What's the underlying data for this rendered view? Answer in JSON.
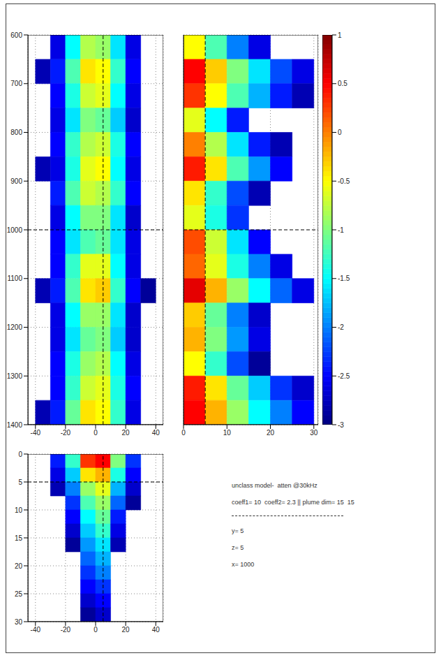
{
  "chart_data": [
    {
      "type": "heatmap",
      "xlim": [
        -45,
        45
      ],
      "ylim": [
        1400,
        600
      ],
      "xticks": [
        -40,
        -20,
        0,
        20,
        40
      ],
      "yticks": [
        600,
        700,
        800,
        900,
        1000,
        1100,
        1200,
        1300,
        1400
      ],
      "grid": true,
      "tick_labels": true,
      "reference_lines": [
        {
          "axis": "y",
          "value": 1000,
          "line_style": "dashed"
        },
        {
          "axis": "x",
          "value": 5,
          "line_style": "dashed"
        }
      ],
      "x": [
        -35,
        -25,
        -15,
        -5,
        5,
        15,
        25,
        35
      ],
      "y": [
        625,
        675,
        725,
        775,
        825,
        875,
        925,
        975,
        1025,
        1075,
        1125,
        1175,
        1225,
        1275,
        1325,
        1375
      ],
      "cells": [
        [
          null,
          -2.6,
          -1.5,
          -0.8,
          -0.9,
          -1.6,
          -2.6,
          null
        ],
        [
          -2.8,
          -2.4,
          -1.2,
          -0.4,
          -0.5,
          -1.3,
          -2.5,
          null
        ],
        [
          null,
          -2.5,
          -1.4,
          -0.7,
          -0.6,
          -1.5,
          -2.6,
          null
        ],
        [
          null,
          -2.6,
          -1.6,
          -1.0,
          -1.1,
          -1.7,
          -2.7,
          null
        ],
        [
          null,
          -2.5,
          -1.3,
          -0.8,
          -0.7,
          -1.4,
          -2.5,
          null
        ],
        [
          -2.8,
          -2.6,
          -1.4,
          -0.6,
          -0.5,
          -1.5,
          -2.6,
          null
        ],
        [
          null,
          -2.4,
          -1.2,
          -0.7,
          -0.8,
          -1.3,
          -2.5,
          null
        ],
        [
          null,
          -2.6,
          -1.5,
          -1.0,
          -1.0,
          -1.6,
          -2.7,
          null
        ],
        [
          null,
          -2.5,
          -1.6,
          -1.2,
          -1.1,
          -1.6,
          -2.6,
          null
        ],
        [
          null,
          -2.5,
          -1.3,
          -0.6,
          -0.6,
          -1.5,
          -2.6,
          null
        ],
        [
          -2.8,
          -2.4,
          -1.2,
          -0.4,
          -0.3,
          -1.3,
          -2.5,
          -2.9
        ],
        [
          null,
          -2.6,
          -1.5,
          -0.9,
          -0.9,
          -1.6,
          -2.7,
          null
        ],
        [
          null,
          -2.6,
          -1.6,
          -1.1,
          -1.0,
          -1.7,
          -2.7,
          null
        ],
        [
          null,
          -2.5,
          -1.4,
          -0.9,
          -0.8,
          -1.5,
          -2.6,
          null
        ],
        [
          null,
          -2.5,
          -1.3,
          -0.7,
          -0.6,
          -1.4,
          -2.5,
          null
        ],
        [
          -2.8,
          -2.4,
          -1.1,
          -0.4,
          -0.5,
          -1.3,
          -2.6,
          null
        ]
      ]
    },
    {
      "type": "heatmap",
      "xlim": [
        0,
        31
      ],
      "ylim": [
        1400,
        600
      ],
      "xticks": [
        0,
        10,
        20,
        30
      ],
      "yticks": [
        600,
        700,
        800,
        900,
        1000,
        1100,
        1200,
        1300,
        1400
      ],
      "grid": true,
      "tick_labels": "x",
      "reference_lines": [
        {
          "axis": "y",
          "value": 1000,
          "line_style": "dashed"
        },
        {
          "axis": "x",
          "value": 5,
          "line_style": "dashed"
        }
      ],
      "x": [
        2.5,
        7.5,
        12.5,
        17.5,
        22.5,
        27.5
      ],
      "y": [
        625,
        675,
        725,
        775,
        825,
        875,
        925,
        975,
        1025,
        1075,
        1125,
        1175,
        1225,
        1275,
        1325,
        1375
      ],
      "cells": [
        [
          -0.5,
          -1.2,
          -2.0,
          -2.6,
          null,
          null
        ],
        [
          0.5,
          -0.3,
          -1.0,
          -1.6,
          -2.2,
          -2.6
        ],
        [
          0.3,
          -0.5,
          -1.2,
          -1.8,
          -2.4,
          -2.8
        ],
        [
          -0.6,
          -1.5,
          -2.4,
          null,
          null,
          null
        ],
        [
          0.0,
          -0.8,
          -1.6,
          -2.4,
          -2.8,
          null
        ],
        [
          0.4,
          -0.4,
          -1.2,
          -1.9,
          -2.5,
          null
        ],
        [
          -0.4,
          -1.3,
          -2.2,
          -2.8,
          null,
          null
        ],
        [
          -0.6,
          -1.4,
          -2.3,
          null,
          null,
          null
        ],
        [
          0.2,
          -0.7,
          -1.6,
          -2.5,
          null,
          null
        ],
        [
          0.1,
          -0.6,
          -1.4,
          -2.0,
          -2.6,
          null
        ],
        [
          0.6,
          -0.2,
          -0.9,
          -1.5,
          -2.1,
          -2.6
        ],
        [
          -0.3,
          -1.1,
          -2.0,
          -2.7,
          null,
          null
        ],
        [
          -0.2,
          -1.0,
          -1.9,
          -2.6,
          null,
          null
        ],
        [
          -0.5,
          -1.3,
          -2.2,
          -2.9,
          null,
          null
        ],
        [
          0.4,
          -0.4,
          -1.1,
          -1.7,
          -2.3,
          -2.7
        ],
        [
          0.5,
          -0.2,
          -0.9,
          -1.5,
          -2.0,
          -2.5
        ]
      ],
      "colorbar": {
        "range": [
          -3,
          1
        ],
        "ticks": [
          1,
          0.5,
          0,
          -0.5,
          -1,
          -1.5,
          -2,
          -2.5,
          -3
        ]
      }
    },
    {
      "type": "heatmap",
      "xlim": [
        -45,
        45
      ],
      "ylim": [
        30,
        0
      ],
      "xticks": [
        -40,
        -20,
        0,
        20,
        40
      ],
      "yticks": [
        0,
        5,
        10,
        15,
        20,
        25,
        30
      ],
      "grid": true,
      "tick_labels": true,
      "reference_lines": [
        {
          "axis": "y",
          "value": 5,
          "line_style": "dashed"
        },
        {
          "axis": "x",
          "value": 5,
          "line_style": "dashed"
        }
      ],
      "x": [
        -35,
        -25,
        -15,
        -5,
        5,
        15,
        25,
        35
      ],
      "y": [
        1.25,
        3.75,
        6.25,
        8.75,
        11.25,
        13.75,
        16.25,
        18.75,
        21.25,
        23.75,
        26.25,
        28.75
      ],
      "cells": [
        [
          null,
          -2.4,
          -1.3,
          0.3,
          0.5,
          -1.0,
          -2.3,
          null
        ],
        [
          null,
          -2.6,
          -1.7,
          -0.4,
          -0.2,
          -1.4,
          -2.5,
          null
        ],
        [
          null,
          -2.8,
          -2.0,
          -0.9,
          -0.6,
          -1.8,
          -2.7,
          null
        ],
        [
          null,
          null,
          -2.3,
          -1.2,
          -0.9,
          -2.1,
          -2.9,
          null
        ],
        [
          null,
          null,
          -2.5,
          -1.5,
          -1.1,
          -2.4,
          null,
          null
        ],
        [
          null,
          null,
          -2.7,
          -1.7,
          -1.3,
          -2.6,
          null,
          null
        ],
        [
          null,
          null,
          -2.9,
          -1.9,
          -1.6,
          -2.8,
          null,
          null
        ],
        [
          null,
          null,
          null,
          -2.1,
          -1.8,
          null,
          null,
          null
        ],
        [
          null,
          null,
          null,
          -2.3,
          -2.0,
          null,
          null,
          null
        ],
        [
          null,
          null,
          null,
          -2.5,
          -2.3,
          null,
          null,
          null
        ],
        [
          null,
          null,
          null,
          -2.7,
          -2.5,
          null,
          null,
          null
        ],
        [
          null,
          null,
          null,
          -2.9,
          -2.7,
          null,
          null,
          null
        ]
      ]
    }
  ],
  "annotations": [
    "unclass model-  atten @30kHz",
    "coeff1= 10  coeff2= 2.3 || plume dim= 15  15",
    "y= 5",
    "z= 5",
    "x= 1000"
  ]
}
